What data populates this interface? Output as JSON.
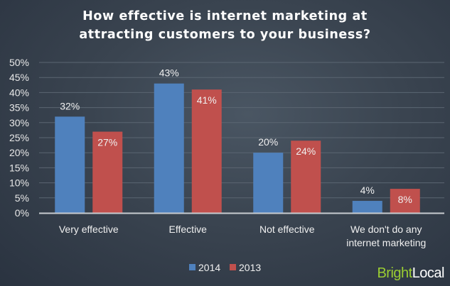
{
  "chart_data": {
    "type": "bar",
    "title_lines": [
      "How effective is internet marketing at",
      "attracting customers to your business?"
    ],
    "categories": [
      [
        "Very effective"
      ],
      [
        "Effective"
      ],
      [
        "Not effective"
      ],
      [
        "We don't do any",
        "internet marketing"
      ]
    ],
    "series": [
      {
        "name": "2014",
        "color": "#4f81bd",
        "values": [
          32,
          43,
          20,
          4
        ]
      },
      {
        "name": "2013",
        "color": "#c0504d",
        "values": [
          27,
          41,
          24,
          8
        ]
      }
    ],
    "ylim": [
      0,
      50
    ],
    "yticks": [
      0,
      5,
      10,
      15,
      20,
      25,
      30,
      35,
      40,
      45,
      50
    ],
    "ytick_format": "%",
    "grid": true,
    "legend_placement": "bottom"
  },
  "logo": {
    "part1": "Bright",
    "part2": "Local",
    "color1": "#9acd32",
    "color2": "#ffffff"
  }
}
